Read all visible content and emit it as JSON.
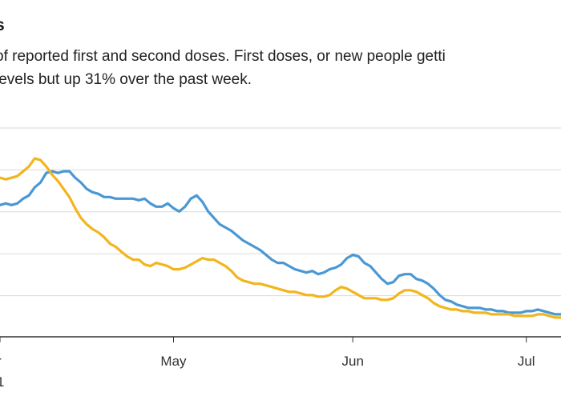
{
  "title": "s",
  "subtitle_line1": "of reported first and second doses. First doses, or new people getti",
  "subtitle_line2": "levels but up 31% over the past week.",
  "chart_data": {
    "type": "line",
    "x_axis": {
      "ticks": [
        {
          "label": "r",
          "day": 0
        },
        {
          "label": "May",
          "day": 30
        },
        {
          "label": "Jun",
          "day": 61
        },
        {
          "label": "Jul",
          "day": 91
        }
      ],
      "sublabel": "1",
      "range_days": [
        0,
        97
      ]
    },
    "y_axis": {
      "gridlines": 5,
      "labels_visible": false
    },
    "series": [
      {
        "color": "#4a98d3",
        "points": [
          [
            0,
            8.2
          ],
          [
            1,
            8.3
          ],
          [
            2,
            8.2
          ],
          [
            3,
            8.3
          ],
          [
            4,
            8.6
          ],
          [
            5,
            8.8
          ],
          [
            6,
            9.3
          ],
          [
            7,
            9.6
          ],
          [
            8,
            10.2
          ],
          [
            9,
            10.3
          ],
          [
            10,
            10.2
          ],
          [
            11,
            10.3
          ],
          [
            12,
            10.3
          ],
          [
            13,
            9.9
          ],
          [
            14,
            9.6
          ],
          [
            15,
            9.2
          ],
          [
            16,
            9.0
          ],
          [
            17,
            8.9
          ],
          [
            18,
            8.7
          ],
          [
            19,
            8.7
          ],
          [
            20,
            8.6
          ],
          [
            21,
            8.6
          ],
          [
            22,
            8.6
          ],
          [
            23,
            8.6
          ],
          [
            24,
            8.5
          ],
          [
            25,
            8.6
          ],
          [
            26,
            8.3
          ],
          [
            27,
            8.1
          ],
          [
            28,
            8.1
          ],
          [
            29,
            8.3
          ],
          [
            30,
            8.0
          ],
          [
            31,
            7.8
          ],
          [
            32,
            8.1
          ],
          [
            33,
            8.6
          ],
          [
            34,
            8.8
          ],
          [
            35,
            8.4
          ],
          [
            36,
            7.8
          ],
          [
            37,
            7.4
          ],
          [
            38,
            7.0
          ],
          [
            39,
            6.8
          ],
          [
            40,
            6.6
          ],
          [
            41,
            6.3
          ],
          [
            42,
            6.0
          ],
          [
            43,
            5.8
          ],
          [
            44,
            5.6
          ],
          [
            45,
            5.4
          ],
          [
            46,
            5.1
          ],
          [
            47,
            4.8
          ],
          [
            48,
            4.6
          ],
          [
            49,
            4.6
          ],
          [
            50,
            4.4
          ],
          [
            51,
            4.2
          ],
          [
            52,
            4.1
          ],
          [
            53,
            4.0
          ],
          [
            54,
            4.1
          ],
          [
            55,
            3.9
          ],
          [
            56,
            4.0
          ],
          [
            57,
            4.2
          ],
          [
            58,
            4.3
          ],
          [
            59,
            4.5
          ],
          [
            60,
            4.9
          ],
          [
            61,
            5.1
          ],
          [
            62,
            5.0
          ],
          [
            63,
            4.6
          ],
          [
            64,
            4.4
          ],
          [
            65,
            4.0
          ],
          [
            66,
            3.6
          ],
          [
            67,
            3.3
          ],
          [
            68,
            3.4
          ],
          [
            69,
            3.8
          ],
          [
            70,
            3.9
          ],
          [
            71,
            3.9
          ],
          [
            72,
            3.6
          ],
          [
            73,
            3.5
          ],
          [
            74,
            3.3
          ],
          [
            75,
            3.0
          ],
          [
            76,
            2.6
          ],
          [
            77,
            2.3
          ],
          [
            78,
            2.2
          ],
          [
            79,
            2.0
          ],
          [
            80,
            1.9
          ],
          [
            81,
            1.8
          ],
          [
            82,
            1.8
          ],
          [
            83,
            1.8
          ],
          [
            84,
            1.7
          ],
          [
            85,
            1.7
          ],
          [
            86,
            1.6
          ],
          [
            87,
            1.6
          ],
          [
            88,
            1.5
          ],
          [
            89,
            1.5
          ],
          [
            90,
            1.5
          ],
          [
            91,
            1.6
          ],
          [
            92,
            1.6
          ],
          [
            93,
            1.7
          ],
          [
            94,
            1.6
          ],
          [
            95,
            1.5
          ],
          [
            96,
            1.4
          ],
          [
            97,
            1.4
          ]
        ]
      },
      {
        "color": "#f2b51d",
        "points": [
          [
            0,
            9.9
          ],
          [
            1,
            9.8
          ],
          [
            2,
            9.9
          ],
          [
            3,
            10.0
          ],
          [
            4,
            10.3
          ],
          [
            5,
            10.6
          ],
          [
            6,
            11.1
          ],
          [
            7,
            11.0
          ],
          [
            8,
            10.6
          ],
          [
            9,
            10.1
          ],
          [
            10,
            9.7
          ],
          [
            11,
            9.2
          ],
          [
            12,
            8.7
          ],
          [
            13,
            8.0
          ],
          [
            14,
            7.4
          ],
          [
            15,
            7.0
          ],
          [
            16,
            6.7
          ],
          [
            17,
            6.5
          ],
          [
            18,
            6.2
          ],
          [
            19,
            5.8
          ],
          [
            20,
            5.6
          ],
          [
            21,
            5.3
          ],
          [
            22,
            5.0
          ],
          [
            23,
            4.8
          ],
          [
            24,
            4.8
          ],
          [
            25,
            4.5
          ],
          [
            26,
            4.4
          ],
          [
            27,
            4.6
          ],
          [
            28,
            4.5
          ],
          [
            29,
            4.4
          ],
          [
            30,
            4.2
          ],
          [
            31,
            4.2
          ],
          [
            32,
            4.3
          ],
          [
            33,
            4.5
          ],
          [
            34,
            4.7
          ],
          [
            35,
            4.9
          ],
          [
            36,
            4.8
          ],
          [
            37,
            4.8
          ],
          [
            38,
            4.6
          ],
          [
            39,
            4.4
          ],
          [
            40,
            4.1
          ],
          [
            41,
            3.7
          ],
          [
            42,
            3.5
          ],
          [
            43,
            3.4
          ],
          [
            44,
            3.3
          ],
          [
            45,
            3.3
          ],
          [
            46,
            3.2
          ],
          [
            47,
            3.1
          ],
          [
            48,
            3.0
          ],
          [
            49,
            2.9
          ],
          [
            50,
            2.8
          ],
          [
            51,
            2.8
          ],
          [
            52,
            2.7
          ],
          [
            53,
            2.6
          ],
          [
            54,
            2.6
          ],
          [
            55,
            2.5
          ],
          [
            56,
            2.5
          ],
          [
            57,
            2.6
          ],
          [
            58,
            2.9
          ],
          [
            59,
            3.1
          ],
          [
            60,
            3.0
          ],
          [
            61,
            2.8
          ],
          [
            62,
            2.6
          ],
          [
            63,
            2.4
          ],
          [
            64,
            2.4
          ],
          [
            65,
            2.4
          ],
          [
            66,
            2.3
          ],
          [
            67,
            2.3
          ],
          [
            68,
            2.4
          ],
          [
            69,
            2.7
          ],
          [
            70,
            2.9
          ],
          [
            71,
            2.9
          ],
          [
            72,
            2.8
          ],
          [
            73,
            2.6
          ],
          [
            74,
            2.4
          ],
          [
            75,
            2.1
          ],
          [
            76,
            1.9
          ],
          [
            77,
            1.8
          ],
          [
            78,
            1.7
          ],
          [
            79,
            1.7
          ],
          [
            80,
            1.6
          ],
          [
            81,
            1.6
          ],
          [
            82,
            1.5
          ],
          [
            83,
            1.5
          ],
          [
            84,
            1.5
          ],
          [
            85,
            1.4
          ],
          [
            86,
            1.4
          ],
          [
            87,
            1.4
          ],
          [
            88,
            1.4
          ],
          [
            89,
            1.3
          ],
          [
            90,
            1.3
          ],
          [
            91,
            1.3
          ],
          [
            92,
            1.3
          ],
          [
            93,
            1.4
          ],
          [
            94,
            1.4
          ],
          [
            95,
            1.3
          ],
          [
            96,
            1.2
          ],
          [
            97,
            1.2
          ]
        ]
      }
    ]
  }
}
